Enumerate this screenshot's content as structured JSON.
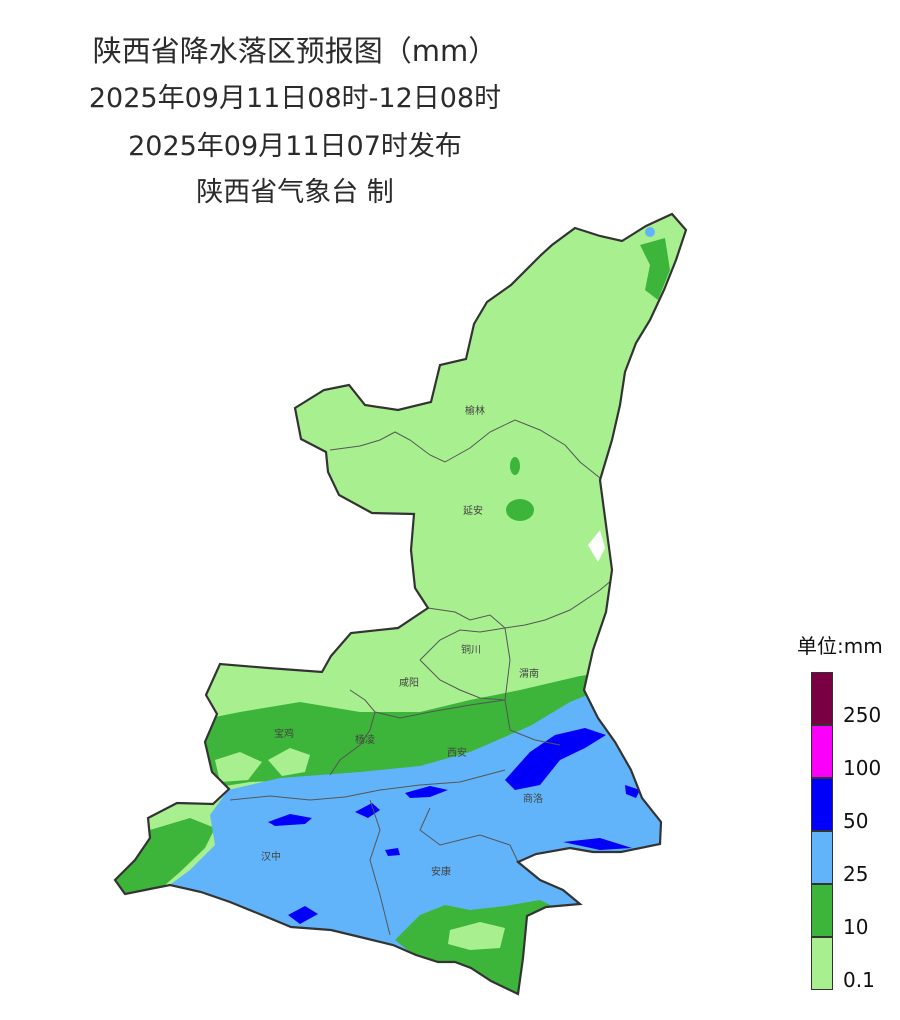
{
  "header": {
    "title": "陕西省降水落区预报图（mm）",
    "period": "2025年09月11日08时-12日08时",
    "issued": "2025年09月11日07时发布",
    "agency": "陕西省气象台 制"
  },
  "cities": [
    {
      "id": "yulin",
      "name": "榆林"
    },
    {
      "id": "yanan",
      "name": "延安"
    },
    {
      "id": "tongchuan",
      "name": "铜川"
    },
    {
      "id": "weinan",
      "name": "渭南"
    },
    {
      "id": "xianyang",
      "name": "咸阳"
    },
    {
      "id": "baoji",
      "name": "宝鸡"
    },
    {
      "id": "yangling",
      "name": "杨凌"
    },
    {
      "id": "xian",
      "name": "西安"
    },
    {
      "id": "shangluo",
      "name": "商洛"
    },
    {
      "id": "hanzhong",
      "name": "汉中"
    },
    {
      "id": "ankang",
      "name": "安康"
    }
  ],
  "legend": {
    "title": "单位:mm",
    "classes": [
      {
        "label": "0.1",
        "color": "#a8f08f"
      },
      {
        "label": "10",
        "color": "#3cb53a"
      },
      {
        "label": "25",
        "color": "#62b4fa"
      },
      {
        "label": "50",
        "color": "#0000fa"
      },
      {
        "label": "100",
        "color": "#fa00fa"
      },
      {
        "label": "250",
        "color": "#7a0044"
      }
    ],
    "ticks": [
      "250",
      "100",
      "50",
      "25",
      "10",
      "0.1"
    ]
  }
}
